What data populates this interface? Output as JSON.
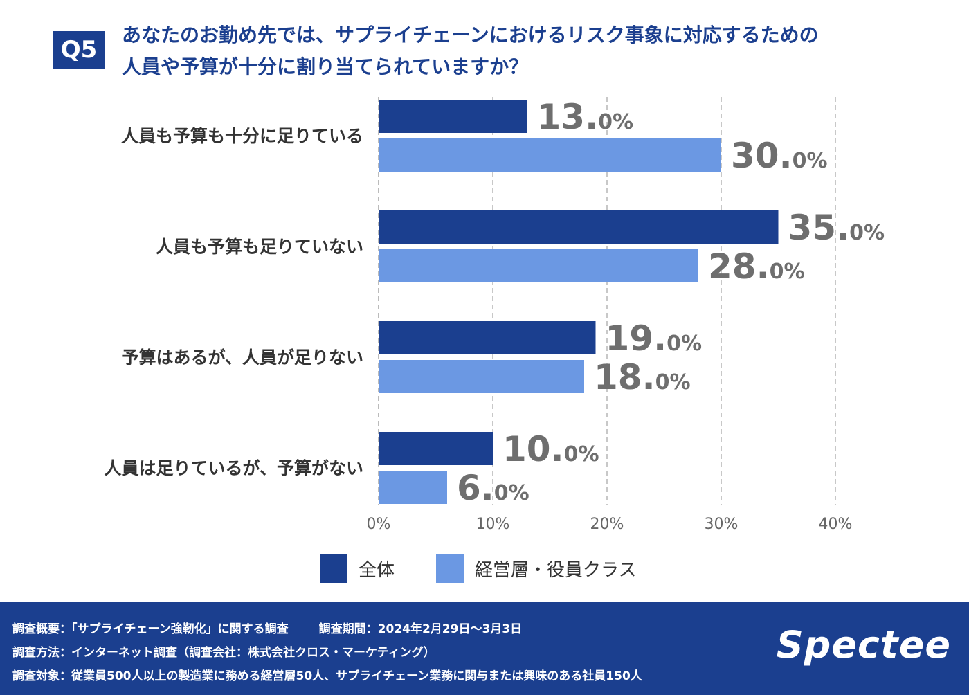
{
  "question": {
    "badge": "Q5",
    "title_line1": "あなたのお勤め先では、サプライチェーンにおけるリスク事象に対応するための",
    "title_line2": "人員や予算が十分に割り当てられていますか？"
  },
  "chart_data": {
    "type": "bar",
    "orientation": "horizontal",
    "categories": [
      "人員も予算も十分に足りている",
      "人員も予算も足りていない",
      "予算はあるが、人員が足りない",
      "人員は足りているが、予算がない"
    ],
    "series": [
      {
        "name": "全体",
        "color": "#1b3f8f",
        "values": [
          13.0,
          35.0,
          19.0,
          10.0
        ]
      },
      {
        "name": "経営層・役員クラス",
        "color": "#6b98e3",
        "values": [
          30.0,
          28.0,
          18.0,
          6.0
        ]
      }
    ],
    "value_labels": [
      [
        "13.",
        "0%"
      ],
      [
        "35.",
        "0%"
      ],
      [
        "19.",
        "0%"
      ],
      [
        "10.",
        "0%"
      ],
      [
        "30.",
        "0%"
      ],
      [
        "28.",
        "0%"
      ],
      [
        "18.",
        "0%"
      ],
      [
        "6.",
        "0%"
      ]
    ],
    "xlim": [
      0,
      40
    ],
    "xticks": [
      0,
      10,
      20,
      30,
      40
    ],
    "xtick_labels": [
      "0%",
      "10%",
      "20%",
      "30%",
      "40%"
    ],
    "grid": true,
    "legend_position": "bottom"
  },
  "legend": {
    "all_label": "全体",
    "exec_label": "経営層・役員クラス",
    "all_color": "#1b3f8f",
    "exec_color": "#6b98e3"
  },
  "footer": {
    "overview": "調査概要：「サプライチェーン強靭化」に関する調査",
    "period": "調査期間：2024年2月29日〜3月3日",
    "method": "調査方法：インターネット調査（調査会社：株式会社クロス・マーケティング）",
    "target": "調査対象：従業員500人以上の製造業に務める経営層50人、サプライチェーン業務に関与または興味のある社員150人",
    "logo": "Spectee"
  }
}
